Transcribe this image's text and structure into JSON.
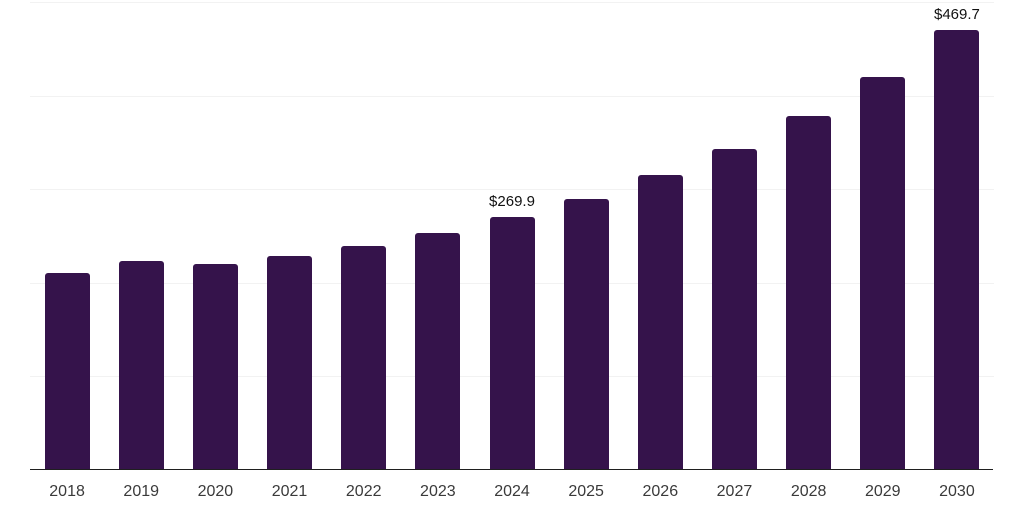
{
  "colors": {
    "bar": "#35134b",
    "axis_line": "#1f1f1f",
    "gridline": "#f2f2f2",
    "data_label": "#111111",
    "tick_label": "#3a3a3a",
    "background": "#ffffff"
  },
  "chart_data": {
    "type": "bar",
    "title": "",
    "xlabel": "",
    "ylabel": "",
    "categories": [
      "2018",
      "2019",
      "2020",
      "2021",
      "2022",
      "2023",
      "2024",
      "2025",
      "2026",
      "2027",
      "2028",
      "2029",
      "2030"
    ],
    "values": [
      210.9,
      223.7,
      220.5,
      229.0,
      239.6,
      253.5,
      269.9,
      289.7,
      315.2,
      342.9,
      378.1,
      419.6,
      469.7
    ],
    "data_labels": [
      "",
      "",
      "",
      "",
      "",
      "",
      "$269.9",
      "",
      "",
      "",
      "",
      "",
      "$469.7"
    ],
    "ylim": [
      0,
      500
    ],
    "gridline_values": [
      100,
      200,
      300,
      400,
      500
    ],
    "y_axis_labels_visible": false,
    "legend": "none",
    "grid": "horizontal"
  }
}
